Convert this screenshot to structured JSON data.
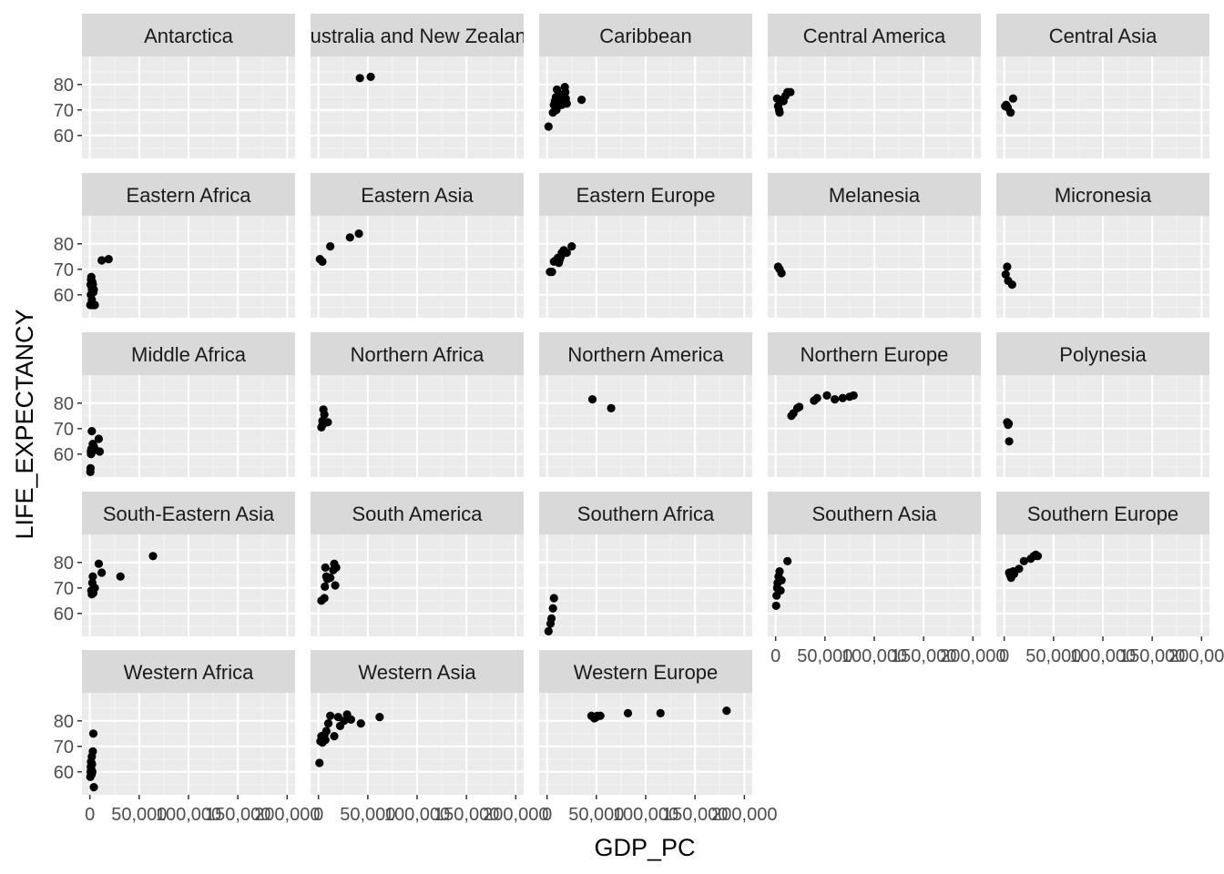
{
  "chart_data": {
    "type": "scatter",
    "facet": "wrap",
    "xlabel": "GDP_PC",
    "ylabel": "LIFE_EXPECTANCY",
    "xlim": [
      -8000,
      208000
    ],
    "ylim": [
      51,
      91
    ],
    "x_ticks": [
      0,
      50000,
      100000,
      150000,
      200000
    ],
    "x_tick_labels": [
      "0",
      "50,000",
      "100,000",
      "150,000",
      "200,000"
    ],
    "y_ticks": [
      60,
      70,
      80
    ],
    "y_tick_labels": [
      "60",
      "70",
      "80"
    ],
    "grid": true,
    "panels": [
      {
        "name": "Antarctica",
        "points": []
      },
      {
        "name": "Australia and New Zealand",
        "points": [
          [
            42000,
            82.5
          ],
          [
            53000,
            83
          ]
        ]
      },
      {
        "name": "Caribbean",
        "points": [
          [
            1500,
            63.5
          ],
          [
            6000,
            69
          ],
          [
            7000,
            72
          ],
          [
            8000,
            73.5
          ],
          [
            8500,
            71
          ],
          [
            9000,
            75
          ],
          [
            9500,
            70
          ],
          [
            10000,
            78
          ],
          [
            11000,
            71.5
          ],
          [
            12000,
            74
          ],
          [
            13000,
            73
          ],
          [
            14000,
            76
          ],
          [
            15000,
            72
          ],
          [
            18000,
            79
          ],
          [
            18500,
            77
          ],
          [
            19000,
            74.5
          ],
          [
            20000,
            72.5
          ],
          [
            35000,
            74
          ]
        ]
      },
      {
        "name": "Central America",
        "points": [
          [
            1500,
            74.5
          ],
          [
            2500,
            71.5
          ],
          [
            3500,
            70
          ],
          [
            4000,
            69
          ],
          [
            6500,
            74
          ],
          [
            8000,
            73.5
          ],
          [
            10000,
            75.5
          ],
          [
            12000,
            77
          ],
          [
            15000,
            77
          ]
        ]
      },
      {
        "name": "Central Asia",
        "points": [
          [
            1000,
            71.5
          ],
          [
            2000,
            72
          ],
          [
            3500,
            71
          ],
          [
            6500,
            69
          ],
          [
            9000,
            74.5
          ]
        ]
      },
      {
        "name": "Eastern Africa",
        "points": [
          [
            500,
            56
          ],
          [
            800,
            64
          ],
          [
            1000,
            60
          ],
          [
            1200,
            66
          ],
          [
            1500,
            67
          ],
          [
            1800,
            63
          ],
          [
            2000,
            58
          ],
          [
            2200,
            62
          ],
          [
            2500,
            65
          ],
          [
            2800,
            56
          ],
          [
            3000,
            64
          ],
          [
            3500,
            61
          ],
          [
            4000,
            62
          ],
          [
            5000,
            56
          ],
          [
            12000,
            73.5
          ],
          [
            19000,
            74
          ]
        ]
      },
      {
        "name": "Eastern Asia",
        "points": [
          [
            1500,
            74
          ],
          [
            4000,
            73
          ],
          [
            12000,
            79
          ],
          [
            32000,
            82.5
          ],
          [
            41000,
            84
          ]
        ]
      },
      {
        "name": "Eastern Europe",
        "points": [
          [
            3000,
            69
          ],
          [
            5000,
            69
          ],
          [
            7000,
            73
          ],
          [
            9000,
            73.5
          ],
          [
            11000,
            74.5
          ],
          [
            12000,
            72.5
          ],
          [
            13000,
            74
          ],
          [
            14000,
            75
          ],
          [
            15000,
            76.5
          ],
          [
            17000,
            77.5
          ],
          [
            20000,
            76.5
          ],
          [
            25000,
            79
          ]
        ]
      },
      {
        "name": "Melanesia",
        "points": [
          [
            2500,
            71
          ],
          [
            4000,
            70
          ],
          [
            6000,
            68.5
          ]
        ]
      },
      {
        "name": "Micronesia",
        "points": [
          [
            1500,
            68
          ],
          [
            3000,
            71
          ],
          [
            4000,
            65.5
          ],
          [
            8000,
            64
          ]
        ]
      },
      {
        "name": "Middle Africa",
        "points": [
          [
            500,
            53
          ],
          [
            700,
            54.5
          ],
          [
            1000,
            61
          ],
          [
            1200,
            60
          ],
          [
            1500,
            62
          ],
          [
            2000,
            69
          ],
          [
            2500,
            61
          ],
          [
            3000,
            64
          ],
          [
            4000,
            63
          ],
          [
            5000,
            62
          ],
          [
            9000,
            66
          ],
          [
            10000,
            61
          ]
        ]
      },
      {
        "name": "Northern Africa",
        "points": [
          [
            3000,
            70.5
          ],
          [
            4000,
            73
          ],
          [
            4200,
            71.5
          ],
          [
            5000,
            77.5
          ],
          [
            6000,
            75.5
          ],
          [
            9500,
            72.5
          ]
        ]
      },
      {
        "name": "Northern America",
        "points": [
          [
            46000,
            81.5
          ],
          [
            65000,
            78
          ]
        ]
      },
      {
        "name": "Northern Europe",
        "points": [
          [
            16000,
            75
          ],
          [
            18000,
            76
          ],
          [
            22000,
            78
          ],
          [
            24000,
            78.5
          ],
          [
            39000,
            81
          ],
          [
            42000,
            82
          ],
          [
            52000,
            83
          ],
          [
            60000,
            81.5
          ],
          [
            68000,
            82
          ],
          [
            75000,
            82.5
          ],
          [
            79000,
            83
          ]
        ]
      },
      {
        "name": "Polynesia",
        "points": [
          [
            3000,
            72.5
          ],
          [
            4000,
            71.5
          ],
          [
            4500,
            72
          ],
          [
            5000,
            65
          ]
        ]
      },
      {
        "name": "South-Eastern Asia",
        "points": [
          [
            1500,
            69
          ],
          [
            2000,
            67.5
          ],
          [
            2500,
            72
          ],
          [
            3000,
            74.5
          ],
          [
            3500,
            68
          ],
          [
            5000,
            70
          ],
          [
            9000,
            79.5
          ],
          [
            12000,
            76
          ],
          [
            31000,
            74.5
          ],
          [
            64000,
            82.5
          ]
        ]
      },
      {
        "name": "South America",
        "points": [
          [
            3000,
            65
          ],
          [
            6000,
            66
          ],
          [
            6500,
            70.5
          ],
          [
            7000,
            78
          ],
          [
            8000,
            74.5
          ],
          [
            9000,
            73.5
          ],
          [
            12000,
            74
          ],
          [
            15000,
            77
          ],
          [
            16000,
            79.5
          ],
          [
            17000,
            71
          ],
          [
            18000,
            78
          ]
        ]
      },
      {
        "name": "Southern Africa",
        "points": [
          [
            1500,
            53
          ],
          [
            3500,
            56
          ],
          [
            4500,
            58
          ],
          [
            6000,
            62
          ],
          [
            7000,
            66
          ]
        ]
      },
      {
        "name": "Southern Asia",
        "points": [
          [
            500,
            63
          ],
          [
            1000,
            67
          ],
          [
            1500,
            70
          ],
          [
            2000,
            72
          ],
          [
            3000,
            74.5
          ],
          [
            4000,
            76.5
          ],
          [
            5000,
            69
          ],
          [
            6000,
            73
          ],
          [
            12000,
            80.5
          ]
        ]
      },
      {
        "name": "Southern Europe",
        "points": [
          [
            5000,
            76
          ],
          [
            6000,
            75
          ],
          [
            7000,
            74
          ],
          [
            9000,
            76.5
          ],
          [
            10000,
            75.5
          ],
          [
            15000,
            77.5
          ],
          [
            20000,
            80.5
          ],
          [
            27000,
            81.5
          ],
          [
            30000,
            82.5
          ],
          [
            32000,
            83
          ],
          [
            34000,
            82.5
          ]
        ]
      },
      {
        "name": "Western Africa",
        "points": [
          [
            500,
            58
          ],
          [
            800,
            60
          ],
          [
            1000,
            62
          ],
          [
            1200,
            64
          ],
          [
            1500,
            61
          ],
          [
            1800,
            59
          ],
          [
            2000,
            66
          ],
          [
            2200,
            63
          ],
          [
            2500,
            60
          ],
          [
            3000,
            68
          ],
          [
            3500,
            75
          ],
          [
            4000,
            54
          ]
        ]
      },
      {
        "name": "Western Asia",
        "points": [
          [
            1000,
            63.5
          ],
          [
            2000,
            72
          ],
          [
            3000,
            74
          ],
          [
            4000,
            71.5
          ],
          [
            5000,
            73
          ],
          [
            6000,
            74.5
          ],
          [
            7000,
            72.5
          ],
          [
            8000,
            76
          ],
          [
            10000,
            79
          ],
          [
            12000,
            82
          ],
          [
            16000,
            74
          ],
          [
            20000,
            81.5
          ],
          [
            22000,
            78
          ],
          [
            26000,
            80
          ],
          [
            29000,
            82.5
          ],
          [
            33000,
            80.5
          ],
          [
            43000,
            79
          ],
          [
            62000,
            81.5
          ]
        ]
      },
      {
        "name": "Western Europe",
        "points": [
          [
            45000,
            82
          ],
          [
            47000,
            81.5
          ],
          [
            48000,
            81
          ],
          [
            50000,
            81.5
          ],
          [
            51000,
            82
          ],
          [
            54000,
            82
          ],
          [
            82000,
            83
          ],
          [
            115000,
            83
          ],
          [
            182000,
            84
          ]
        ]
      }
    ]
  }
}
